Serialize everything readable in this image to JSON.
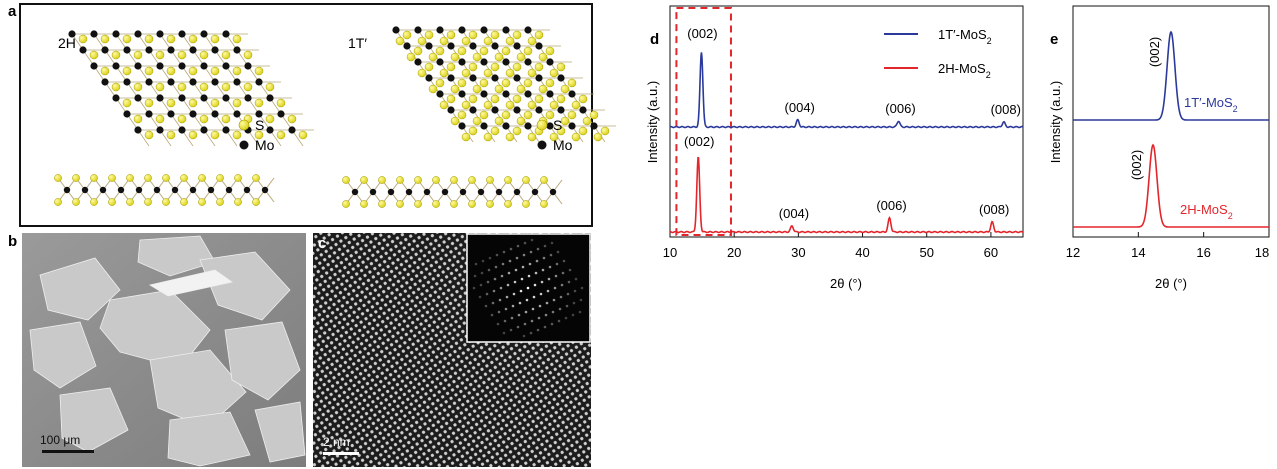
{
  "panels": {
    "a": {
      "letter": "a",
      "left_label": "2H",
      "right_label": "1T′",
      "legend": [
        {
          "label": "S",
          "color": "#e8e21a"
        },
        {
          "label": "Mo",
          "color": "#111111"
        }
      ]
    },
    "b": {
      "letter": "b",
      "scale_bar": "100 μm"
    },
    "c": {
      "letter": "c",
      "scale_bar": "2 nm"
    },
    "d": {
      "letter": "d"
    },
    "e": {
      "letter": "e"
    }
  },
  "colors": {
    "blue": "#2b3a9a",
    "red": "#e3262b",
    "S": "#e8e21a",
    "Mo": "#111111",
    "dashed_box": "#e3262b"
  },
  "chart_data": [
    {
      "panel": "d",
      "type": "line",
      "xlabel": "2θ (°)",
      "ylabel": "Intensity (a.u.)",
      "xlim": [
        10,
        65
      ],
      "xticks": [
        10,
        20,
        30,
        40,
        50,
        60
      ],
      "legend_position": "top-right",
      "series": [
        {
          "name": "1T′-MoS2",
          "color": "#2b3a9a",
          "peaks": [
            {
              "x": 14.9,
              "label": "(002)"
            },
            {
              "x": 29.9,
              "label": "(004)"
            },
            {
              "x": 45.6,
              "label": "(006)"
            },
            {
              "x": 62.0,
              "label": "(008)"
            }
          ]
        },
        {
          "name": "2H-MoS2",
          "color": "#e3262b",
          "peaks": [
            {
              "x": 14.4,
              "label": "(002)"
            },
            {
              "x": 29.0,
              "label": "(004)"
            },
            {
              "x": 44.2,
              "label": "(006)"
            },
            {
              "x": 60.2,
              "label": "(008)"
            }
          ]
        }
      ],
      "highlight_box_x": [
        11,
        19.5
      ]
    },
    {
      "panel": "e",
      "type": "line",
      "xlabel": "2θ (°)",
      "ylabel": "Intensity (a.u.)",
      "xlim": [
        12,
        18
      ],
      "xticks": [
        12,
        14,
        16,
        18
      ],
      "series": [
        {
          "name": "1T′-MoS2",
          "color": "#2b3a9a",
          "peak_x": 15.0,
          "peak_label": "(002)"
        },
        {
          "name": "2H-MoS2",
          "color": "#e3262b",
          "peak_x": 14.45,
          "peak_label": "(002)"
        }
      ]
    }
  ]
}
